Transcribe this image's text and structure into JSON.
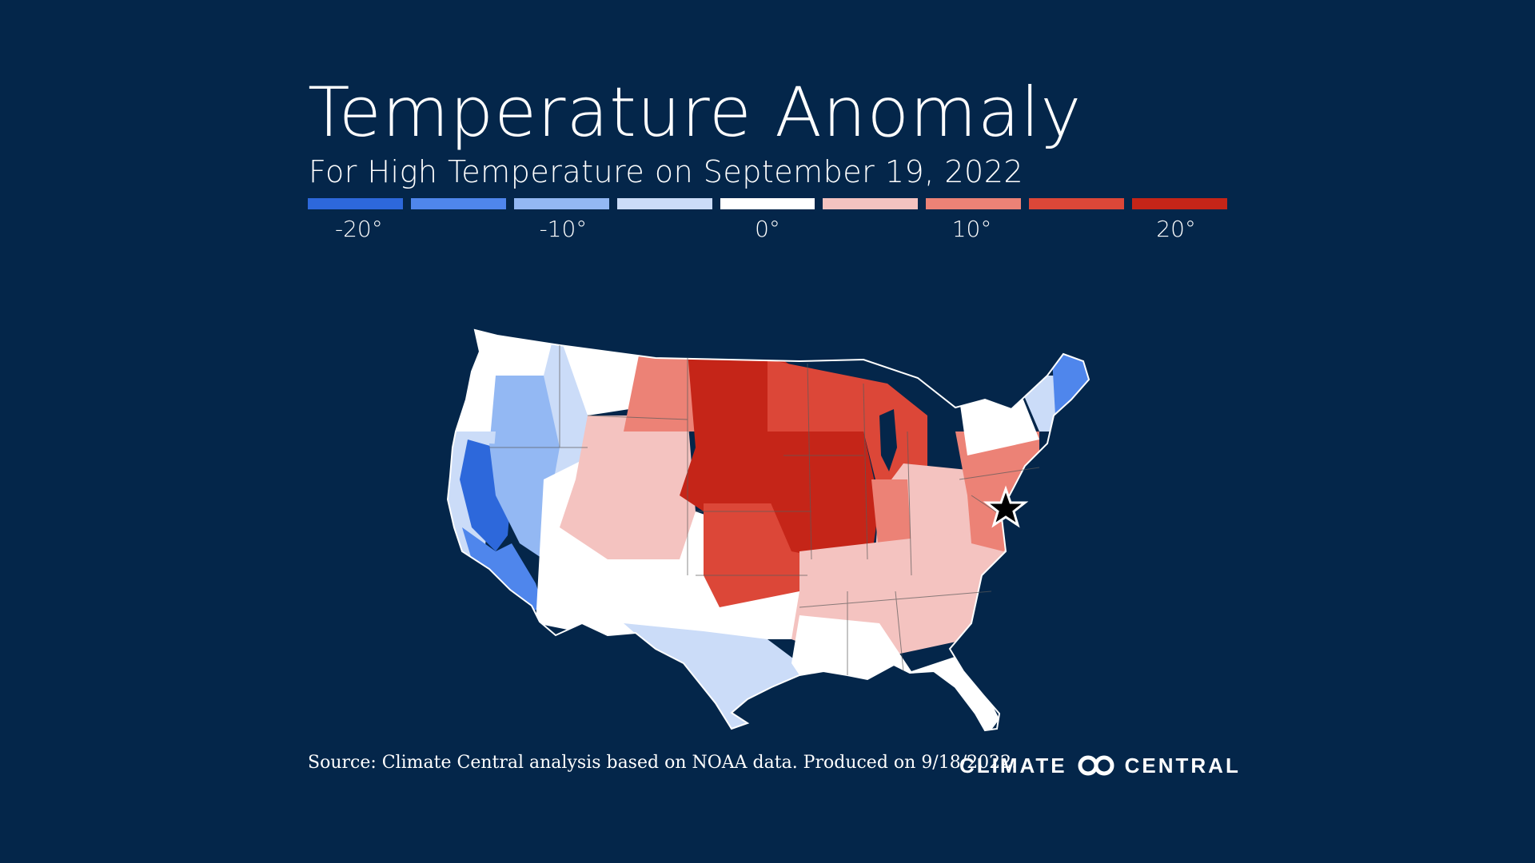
{
  "header": {
    "title": "Temperature Anomaly",
    "subtitle": "For High Temperature on September 19, 2022"
  },
  "legend": {
    "colors": [
      "#2d68db",
      "#4f86ec",
      "#93b8f3",
      "#cbdcf8",
      "#ffffff",
      "#f4c3c0",
      "#ec8276",
      "#dc4738",
      "#c52518"
    ],
    "labels": [
      {
        "text": "-20°",
        "value": -20
      },
      {
        "text": "-10°",
        "value": -10
      },
      {
        "text": "0°",
        "value": 0
      },
      {
        "text": "10°",
        "value": 10
      },
      {
        "text": "20°",
        "value": 20
      }
    ],
    "min": -22.5,
    "max": 22.5
  },
  "map_regions": [
    {
      "name": "pacific-northwest-coast",
      "color": "#ffffff"
    },
    {
      "name": "oregon-interior",
      "color": "#93b8f3"
    },
    {
      "name": "california-coast",
      "color": "#cbdcf8"
    },
    {
      "name": "california-central-valley",
      "color": "#2d68db"
    },
    {
      "name": "southern-california",
      "color": "#4f86ec"
    },
    {
      "name": "nevada",
      "color": "#93b8f3"
    },
    {
      "name": "idaho-utah",
      "color": "#cbdcf8"
    },
    {
      "name": "montana-west",
      "color": "#ffffff"
    },
    {
      "name": "southwest",
      "color": "#ffffff"
    },
    {
      "name": "texas",
      "color": "#cbdcf8"
    },
    {
      "name": "wyoming-colorado",
      "color": "#f4c3c0"
    },
    {
      "name": "montana-east",
      "color": "#ec8276"
    },
    {
      "name": "dakotas-nebraska",
      "color": "#c52518"
    },
    {
      "name": "kansas-oklahoma",
      "color": "#dc4738"
    },
    {
      "name": "iowa-missouri",
      "color": "#c52518"
    },
    {
      "name": "upper-midwest",
      "color": "#dc4738"
    },
    {
      "name": "ohio-valley",
      "color": "#f4c3c0"
    },
    {
      "name": "indiana",
      "color": "#ec8276"
    },
    {
      "name": "southeast",
      "color": "#f4c3c0"
    },
    {
      "name": "gulf-coast-florida",
      "color": "#ffffff"
    },
    {
      "name": "mid-atlantic",
      "color": "#ec8276"
    },
    {
      "name": "new-york",
      "color": "#ffffff"
    },
    {
      "name": "vermont-new-hampshire",
      "color": "#cbdcf8"
    },
    {
      "name": "maine",
      "color": "#4f86ec"
    }
  ],
  "marker": {
    "name": "star-marker",
    "color": "#000000"
  },
  "footer": {
    "source": "Source: Climate Central analysis based on NOAA data. Produced on 9/18/2022.",
    "logo_left": "CLIMATE",
    "logo_right": "CENTRAL"
  }
}
